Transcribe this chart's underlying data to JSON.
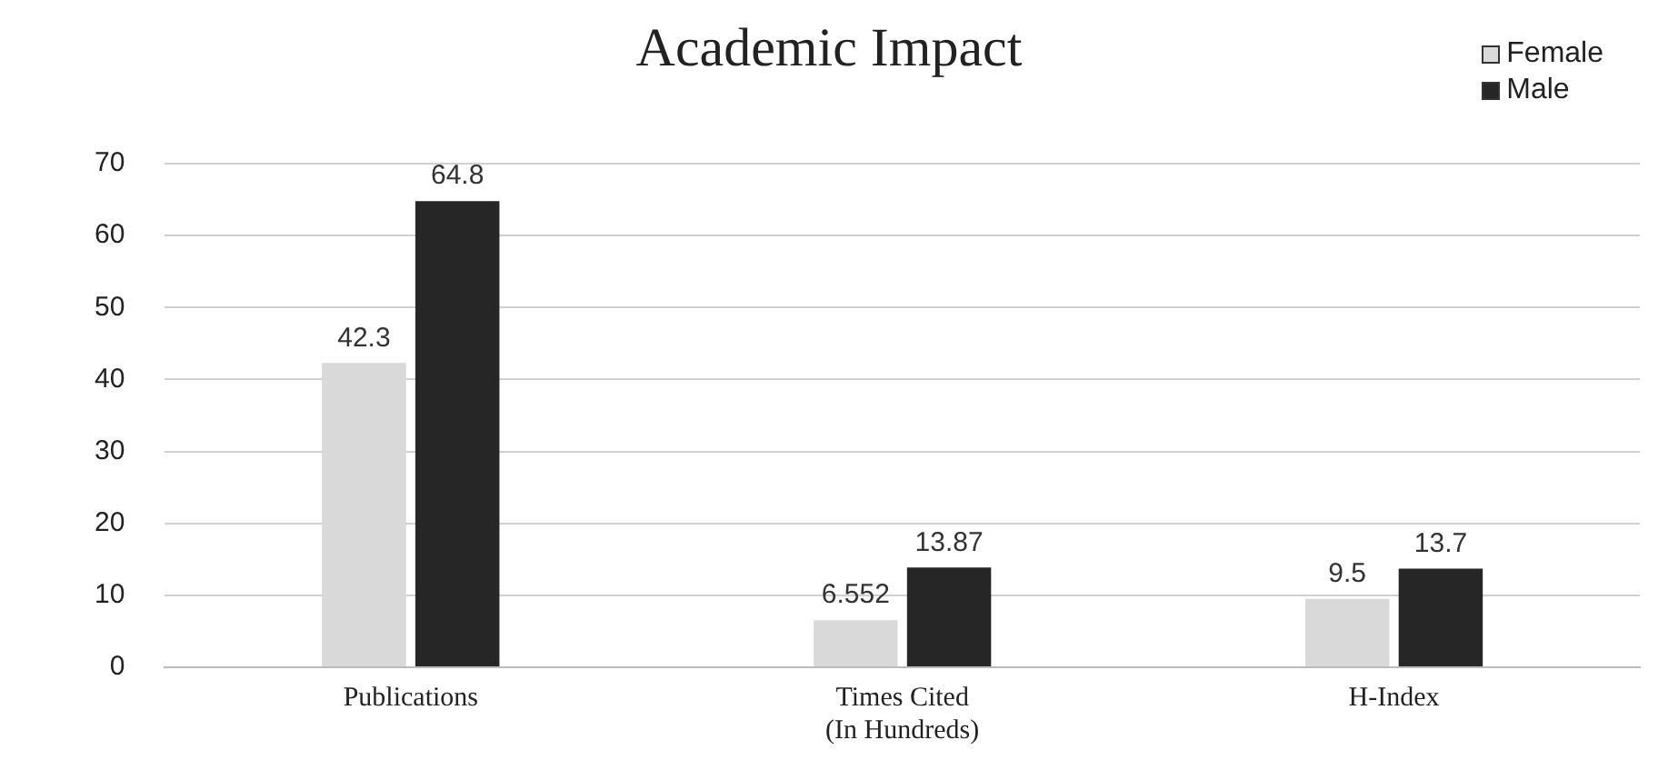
{
  "chart_data": {
    "type": "bar",
    "title": "Academic Impact",
    "categories": [
      "Publications",
      "Times Cited\n(In Hundreds)",
      "H-Index"
    ],
    "series": [
      {
        "name": "Female",
        "color": "#d9d9d9",
        "values": [
          42.3,
          6.552,
          9.5
        ]
      },
      {
        "name": "Male",
        "color": "#262626",
        "values": [
          64.8,
          13.87,
          13.7
        ]
      }
    ],
    "ylim": [
      0,
      70
    ],
    "yticks": [
      0,
      10,
      20,
      30,
      40,
      50,
      60,
      70
    ],
    "grid": "y",
    "legend": "top right",
    "data_labels": true
  }
}
